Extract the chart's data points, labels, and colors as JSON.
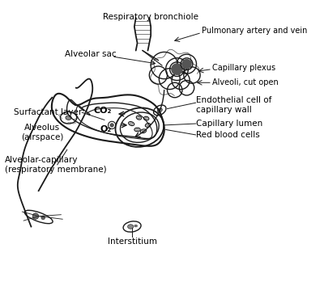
{
  "background_color": "#ffffff",
  "labels": {
    "respiratory_bronchiole": "Respiratory bronchiole",
    "pulmonary_artery": "Pulmonary artery and vein",
    "alveolar_sac": "Alveolar sac",
    "capillary_plexus": "Capillary plexus",
    "alveoli_cut": "Alveoli, cut open",
    "surfactant_layer": "Surfactant layer",
    "capillary_lumen": "Capillary lumen",
    "alveolus": "Alveolus\n(airspace)",
    "o2": "O₂",
    "co2": "CO₂",
    "red_blood_cells": "Red blood cells",
    "alveolar_capillary": "Alveolar-capillary\n(respiratory membrane)",
    "endothelial_cell": "Endothelial cell of\ncapillary wall",
    "interstitium": "Interstitium"
  },
  "line_color": "#1a1a1a",
  "text_color": "#000000",
  "font_size": 7.5,
  "title_font_size": 8
}
